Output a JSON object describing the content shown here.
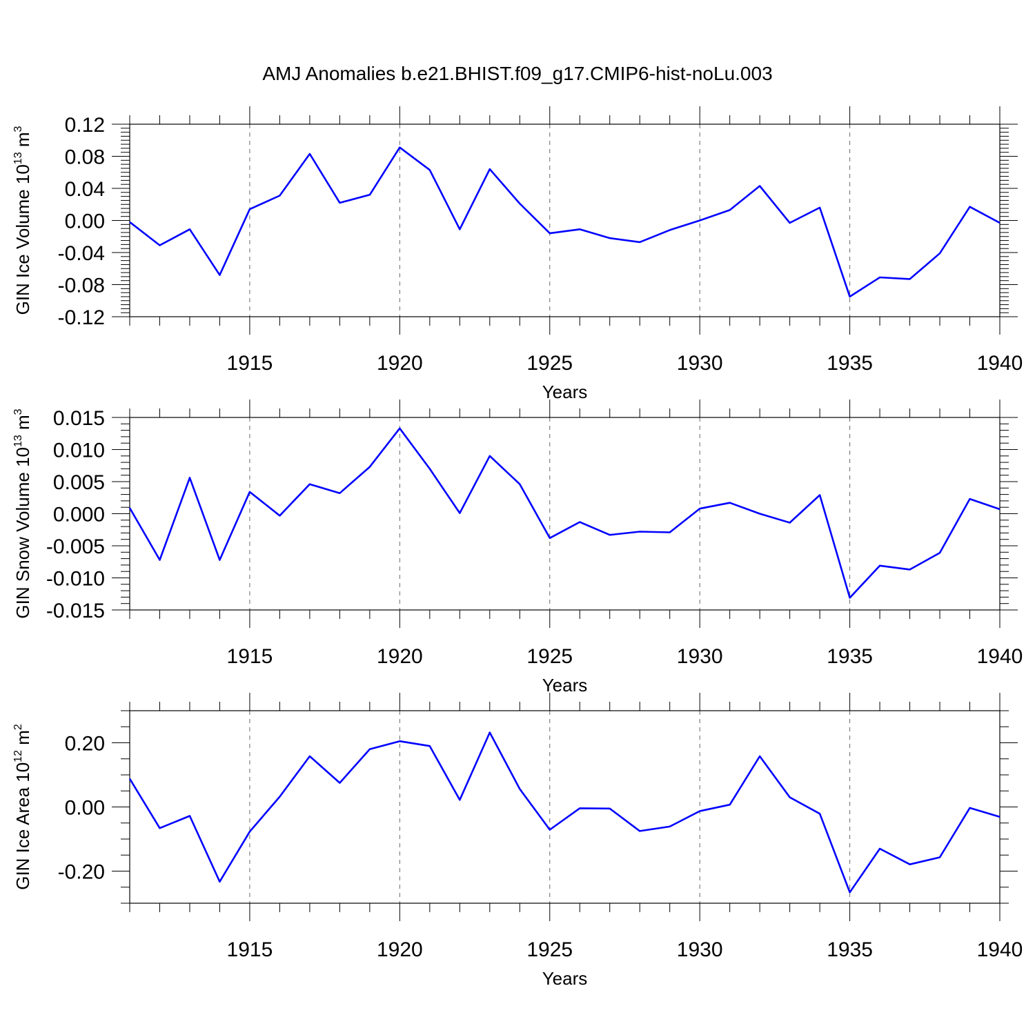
{
  "title": "AMJ Anomalies b.e21.BHIST.f09_g17.CMIP6-hist-noLu.003",
  "chart_data": [
    {
      "type": "line",
      "ylabel": {
        "prefix": "GIN Ice Volume 10",
        "exponent": "13",
        "unit": " m",
        "unit_exp": "3"
      },
      "xlabel": "Years",
      "xlim": [
        1911,
        1940
      ],
      "ylim": [
        -0.12,
        0.12
      ],
      "yticks": [
        -0.12,
        -0.08,
        -0.04,
        0.0,
        0.04,
        0.08,
        0.12
      ],
      "ytick_labels": [
        "-0.12",
        "-0.08",
        "-0.04",
        "0.00",
        "0.04",
        "0.08",
        "0.12"
      ],
      "xticks": [
        1915,
        1920,
        1925,
        1930,
        1935,
        1940
      ],
      "xtick_labels": [
        "1915",
        "1920",
        "1925",
        "1930",
        "1935",
        "1940"
      ],
      "x": [
        1911,
        1912,
        1913,
        1914,
        1915,
        1916,
        1917,
        1918,
        1919,
        1920,
        1921,
        1922,
        1923,
        1924,
        1925,
        1926,
        1927,
        1928,
        1929,
        1930,
        1931,
        1932,
        1933,
        1934,
        1935,
        1936,
        1937,
        1938,
        1939,
        1940
      ],
      "series": [
        {
          "values": [
            -0.002,
            -0.031,
            -0.011,
            -0.068,
            0.014,
            0.031,
            0.083,
            0.022,
            0.032,
            0.091,
            0.063,
            -0.011,
            0.064,
            0.021,
            -0.016,
            -0.011,
            -0.022,
            -0.027,
            -0.012,
            0.0,
            0.013,
            0.043,
            -0.003,
            0.016,
            -0.095,
            -0.071,
            -0.073,
            -0.041,
            0.017,
            -0.003
          ],
          "color": "#0000ff"
        }
      ],
      "grid": "vertical dashed at major x ticks"
    },
    {
      "type": "line",
      "ylabel": {
        "prefix": "GIN Snow Volume 10",
        "exponent": "13",
        "unit": " m",
        "unit_exp": "3"
      },
      "xlabel": "Years",
      "xlim": [
        1911,
        1940
      ],
      "ylim": [
        -0.015,
        0.015
      ],
      "yticks": [
        -0.015,
        -0.01,
        -0.005,
        0.0,
        0.005,
        0.01,
        0.015
      ],
      "ytick_labels": [
        "-0.015",
        "-0.010",
        "-0.005",
        "0.000",
        "0.005",
        "0.010",
        "0.015"
      ],
      "xticks": [
        1915,
        1920,
        1925,
        1930,
        1935,
        1940
      ],
      "xtick_labels": [
        "1915",
        "1920",
        "1925",
        "1930",
        "1935",
        "1940"
      ],
      "x": [
        1911,
        1912,
        1913,
        1914,
        1915,
        1916,
        1917,
        1918,
        1919,
        1920,
        1921,
        1922,
        1923,
        1924,
        1925,
        1926,
        1927,
        1928,
        1929,
        1930,
        1931,
        1932,
        1933,
        1934,
        1935,
        1936,
        1937,
        1938,
        1939,
        1940
      ],
      "series": [
        {
          "values": [
            0.0009,
            -0.0072,
            0.0056,
            -0.0072,
            0.0034,
            -0.0003,
            0.0046,
            0.0032,
            0.0073,
            0.0133,
            0.007,
            0.0001,
            0.009,
            0.0046,
            -0.0038,
            -0.0013,
            -0.0033,
            -0.0028,
            -0.0029,
            0.0008,
            0.0017,
            0.0,
            -0.0014,
            0.0029,
            -0.0131,
            -0.0081,
            -0.0087,
            -0.0061,
            0.0023,
            0.0007
          ],
          "color": "#0000ff"
        }
      ],
      "grid": "vertical dashed at major x ticks"
    },
    {
      "type": "line",
      "ylabel": {
        "prefix": "GIN Ice Area 10",
        "exponent": "12",
        "unit": " m",
        "unit_exp": "2"
      },
      "xlabel": "Years",
      "xlim": [
        1911,
        1940
      ],
      "ylim": [
        -0.3,
        0.3
      ],
      "yticks": [
        -0.2,
        0.0,
        0.2
      ],
      "ytick_labels": [
        "-0.20",
        "0.00",
        "0.20"
      ],
      "xticks": [
        1915,
        1920,
        1925,
        1930,
        1935,
        1940
      ],
      "xtick_labels": [
        "1915",
        "1920",
        "1925",
        "1930",
        "1935",
        "1940"
      ],
      "x": [
        1911,
        1912,
        1913,
        1914,
        1915,
        1916,
        1917,
        1918,
        1919,
        1920,
        1921,
        1922,
        1923,
        1924,
        1925,
        1926,
        1927,
        1928,
        1929,
        1930,
        1931,
        1932,
        1933,
        1934,
        1935,
        1936,
        1937,
        1938,
        1939,
        1940
      ],
      "series": [
        {
          "values": [
            0.088,
            -0.066,
            -0.028,
            -0.233,
            -0.077,
            0.032,
            0.158,
            0.075,
            0.18,
            0.205,
            0.19,
            0.022,
            0.232,
            0.056,
            -0.071,
            -0.004,
            -0.005,
            -0.075,
            -0.061,
            -0.013,
            0.007,
            0.158,
            0.03,
            -0.021,
            -0.266,
            -0.13,
            -0.179,
            -0.157,
            -0.003,
            -0.031
          ],
          "color": "#0000ff"
        }
      ],
      "grid": "vertical dashed at major x ticks"
    }
  ]
}
